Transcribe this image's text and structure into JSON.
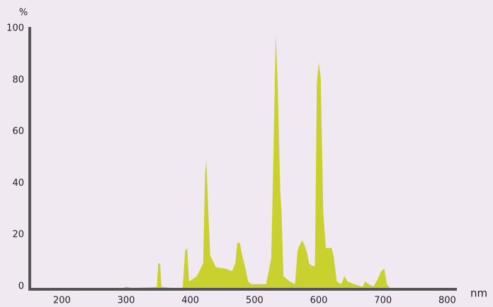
{
  "chart_data": {
    "type": "area",
    "y_label": "%",
    "x_label": "nm",
    "color": "#c9d12f",
    "axis_color": "#555555",
    "x": [
      150,
      290,
      300,
      310,
      340,
      348,
      350,
      353,
      355,
      370,
      388,
      392,
      395,
      398,
      410,
      420,
      423,
      425,
      428,
      431,
      433,
      440,
      455,
      465,
      470,
      473,
      477,
      480,
      485,
      490,
      495,
      518,
      522,
      526,
      530,
      533,
      536,
      540,
      542,
      545,
      555,
      563,
      567,
      570,
      574,
      578,
      582,
      585,
      590,
      594,
      597,
      600,
      603,
      607,
      611,
      615,
      620,
      623,
      628,
      635,
      640,
      645,
      655,
      668,
      672,
      678,
      685,
      692,
      697,
      702,
      706,
      712,
      800
    ],
    "values": [
      0,
      0,
      1,
      0.5,
      0.8,
      1,
      10,
      10,
      1,
      0.5,
      0.5,
      15,
      16,
      3,
      5,
      10,
      45,
      50,
      30,
      13,
      12,
      8.5,
      8,
      7,
      10,
      18,
      18,
      14,
      9,
      3,
      2,
      2,
      7,
      12,
      60,
      99,
      80,
      38,
      30,
      5,
      3,
      2,
      15,
      17,
      19,
      17,
      14,
      10,
      9,
      9,
      80,
      88,
      82,
      30,
      16,
      16,
      16,
      13,
      3,
      2,
      5,
      3,
      2,
      1,
      3,
      2,
      1,
      4,
      7,
      8,
      2,
      0,
      0
    ],
    "xlim": [
      150,
      815
    ],
    "ylim": [
      0,
      100
    ],
    "xticks": [
      200,
      300,
      400,
      500,
      600,
      700,
      800
    ],
    "yticks": [
      0,
      20,
      40,
      60,
      80,
      100
    ]
  }
}
